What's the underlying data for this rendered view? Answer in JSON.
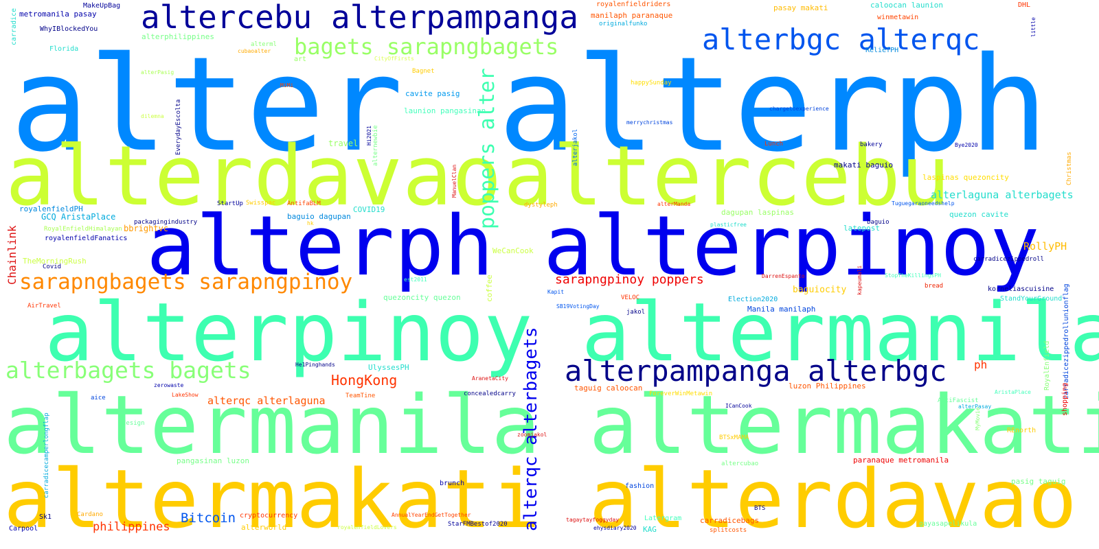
{
  "words": [
    {
      "text": "alter",
      "color": "#0088ff"
    },
    {
      "text": "alterph",
      "color": "#0088ff"
    },
    {
      "text": "alterdavao",
      "color": "#ccff33"
    },
    {
      "text": "altercebu",
      "color": "#ccff33"
    },
    {
      "text": "alterph alterpinoy",
      "color": "#0000ee"
    },
    {
      "text": "alterpinoy altermanila",
      "color": "#3dffb0"
    },
    {
      "text": "altermanila altermakati",
      "color": "#66ff99"
    },
    {
      "text": "altermakati alterdavao",
      "color": "#ffcc00"
    },
    {
      "text": "altercebu alterpampanga",
      "color": "#000099"
    },
    {
      "text": "alterbgc alterqc",
      "color": "#0055ee"
    },
    {
      "text": "bagets sarapngbagets",
      "color": "#99ff66"
    },
    {
      "text": "poppers alter",
      "color": "#3dffb0"
    },
    {
      "text": "sarapngbagets sarapngpinoy",
      "color": "#ff8800"
    },
    {
      "text": "alterbagets bagets",
      "color": "#88ff77"
    },
    {
      "text": "alterqc alterbagets",
      "color": "#0000ee"
    },
    {
      "text": "alterpampanga alterbgc",
      "color": "#000088"
    },
    {
      "text": "HongKong",
      "color": "#ff3300"
    },
    {
      "text": "Bitcoin",
      "color": "#0055ee"
    },
    {
      "text": "philippines",
      "color": "#ff3300"
    },
    {
      "text": "sarapngpinoy poppers",
      "color": "#ee0000"
    },
    {
      "text": "alterqc alterlaguna",
      "color": "#ff5500"
    },
    {
      "text": "alterlaguna alterbagets",
      "color": "#22ddcc"
    },
    {
      "text": "Chainlink",
      "color": "#dd1111"
    },
    {
      "text": "RollyPH",
      "color": "#ffbb00"
    },
    {
      "text": "ph",
      "color": "#ff3300"
    },
    {
      "text": "bbrightvc",
      "color": "#ff9900"
    },
    {
      "text": "baguiocity",
      "color": "#ffcc00"
    },
    {
      "text": "GCQ AristaPlace",
      "color": "#00aadd"
    },
    {
      "text": "metromanila pasay",
      "color": "#0000aa"
    },
    {
      "text": "MakeUpBag",
      "color": "#000099"
    },
    {
      "text": "WhyIBlockedYou",
      "color": "#000088"
    },
    {
      "text": "Florida",
      "color": "#22ddcc"
    },
    {
      "text": "alterphilippines",
      "color": "#77ff88"
    },
    {
      "text": "alterml",
      "color": "#88ff77"
    },
    {
      "text": "cubaoalter",
      "color": "#ffaa00"
    },
    {
      "text": "CityOfFirsts",
      "color": "#ddff55"
    },
    {
      "text": "art",
      "color": "#99ff66"
    },
    {
      "text": "Bagnet",
      "color": "#ffcc00"
    },
    {
      "text": "alterPasig",
      "color": "#aaff55"
    },
    {
      "text": "MiMi",
      "color": "#ff4400"
    },
    {
      "text": "dilemna",
      "color": "#ccff44"
    },
    {
      "text": "cavite pasig",
      "color": "#0099ee"
    },
    {
      "text": "launion pangasinan",
      "color": "#44ffbb"
    },
    {
      "text": "travel",
      "color": "#99ff66"
    },
    {
      "text": "Hi2021",
      "color": "#000099"
    },
    {
      "text": "alternewbie",
      "color": "#77ff88"
    },
    {
      "text": "EverydayEscolta",
      "color": "#000088"
    },
    {
      "text": "ManuelClan",
      "color": "#dd1111"
    },
    {
      "text": "royalenfieldriders",
      "color": "#ff5500"
    },
    {
      "text": "manilaph paranaque",
      "color": "#ff5500"
    },
    {
      "text": "originalfunko",
      "color": "#00aadd"
    },
    {
      "text": "pasay makati",
      "color": "#ffbb00"
    },
    {
      "text": "caloocan launion",
      "color": "#22ddcc"
    },
    {
      "text": "winmetawin",
      "color": "#ff4400"
    },
    {
      "text": "DHL",
      "color": "#ff3300"
    },
    {
      "text": "little",
      "color": "#0000aa"
    },
    {
      "text": "ReliefPH",
      "color": "#0088dd"
    },
    {
      "text": "happySunday",
      "color": "#ffdd00"
    },
    {
      "text": "chargetoexperience",
      "color": "#0044dd"
    },
    {
      "text": "merrychristmas",
      "color": "#0044dd"
    },
    {
      "text": "alterjakol",
      "color": "#0066ee"
    },
    {
      "text": "Lunch",
      "color": "#ff3300"
    },
    {
      "text": "bakery",
      "color": "#000099"
    },
    {
      "text": "Bye2020",
      "color": "#0000aa"
    },
    {
      "text": "Christmas",
      "color": "#ffaa00"
    },
    {
      "text": "laspinas quezoncity",
      "color": "#ffdd00"
    },
    {
      "text": "makati baguio",
      "color": "#000088"
    },
    {
      "text": "dystyleph",
      "color": "#ffaa00"
    },
    {
      "text": "alterManda",
      "color": "#ff3300"
    },
    {
      "text": "Tuguegaraoneedshelp",
      "color": "#0055ee"
    },
    {
      "text": "dagupan laspinas",
      "color": "#99ff66"
    },
    {
      "text": "latepost",
      "color": "#22ddcc"
    },
    {
      "text": "quezon cavite",
      "color": "#22ddcc"
    },
    {
      "text": "plasticfree",
      "color": "#22ddcc"
    },
    {
      "text": "baguio",
      "color": "#000088"
    },
    {
      "text": "royalenfieldPH",
      "color": "#0088dd"
    },
    {
      "text": "StartUp",
      "color": "#000099"
    },
    {
      "text": "Swisspac",
      "color": "#ffcc00"
    },
    {
      "text": "AntifaBLM",
      "color": "#ff4400"
    },
    {
      "text": "COVID19",
      "color": "#22ddcc"
    },
    {
      "text": "packagingindustry",
      "color": "#000088"
    },
    {
      "text": "baguio dagupan",
      "color": "#0088dd"
    },
    {
      "text": "hk",
      "color": "#ffcc00"
    },
    {
      "text": "RoyalEnfieldHimalayan",
      "color": "#aaff55"
    },
    {
      "text": "royalenfieldFanatics",
      "color": "#0000aa"
    },
    {
      "text": "TheMorningRush",
      "color": "#ccff44"
    },
    {
      "text": "Covid",
      "color": "#000088"
    },
    {
      "text": "WeCanCook",
      "color": "#ccff44"
    },
    {
      "text": "coffee",
      "color": "#ccff44"
    },
    {
      "text": "est2011",
      "color": "#44ffbb"
    },
    {
      "text": "quezoncity quezon",
      "color": "#66ff99"
    },
    {
      "text": "AirTravel",
      "color": "#ff3300"
    },
    {
      "text": "SB19VotingDay",
      "color": "#0055ee"
    },
    {
      "text": "Kapit",
      "color": "#0055ee"
    },
    {
      "text": "VELOC",
      "color": "#ff3300"
    },
    {
      "text": "DarrenEspanto",
      "color": "#dd1111"
    },
    {
      "text": "kapeumali",
      "color": "#dd1111"
    },
    {
      "text": "StopTheKillingsPH",
      "color": "#44ffbb"
    },
    {
      "text": "bread",
      "color": "#ee2200"
    },
    {
      "text": "carradicezippedroll",
      "color": "#000088"
    },
    {
      "text": "korneliascuisine",
      "color": "#000088"
    },
    {
      "text": "StandYourGround",
      "color": "#22ddcc"
    },
    {
      "text": "Election2020",
      "color": "#00aadd"
    },
    {
      "text": "Manila manilaph",
      "color": "#0044dd"
    },
    {
      "text": "jakol",
      "color": "#000088"
    },
    {
      "text": "carradicezippedrollunionflag",
      "color": "#0044dd"
    },
    {
      "text": "shopping",
      "color": "#ee0000"
    },
    {
      "text": "RoyalEnfield",
      "color": "#88ff77"
    },
    {
      "text": "carradice",
      "color": "#22ddcc"
    },
    {
      "text": "UlyssesPH",
      "color": "#22ddcc"
    },
    {
      "text": "He1Pinghands",
      "color": "#000088"
    },
    {
      "text": "zerowaste",
      "color": "#0000aa"
    },
    {
      "text": "AranetaCity",
      "color": "#dd1111"
    },
    {
      "text": "taguig caloocan",
      "color": "#ff5500"
    },
    {
      "text": "luzon Philippines",
      "color": "#ff5500"
    },
    {
      "text": "LakeShow",
      "color": "#ff3300"
    },
    {
      "text": "TeamTine",
      "color": "#ff5500"
    },
    {
      "text": "aice",
      "color": "#0044dd"
    },
    {
      "text": "concealedcarry",
      "color": "#000088"
    },
    {
      "text": "ForeverWinMetawin",
      "color": "#ffdd00"
    },
    {
      "text": "ICanCook",
      "color": "#000099"
    },
    {
      "text": "AntiFascist",
      "color": "#66ff99"
    },
    {
      "text": "AristaPlace",
      "color": "#44ffbb"
    },
    {
      "text": "alterPasay",
      "color": "#00aadd"
    },
    {
      "text": "MyMovie",
      "color": "#88ff77"
    },
    {
      "text": "carradicecamperlongflap",
      "color": "#00aadd"
    },
    {
      "text": "design",
      "color": "#66ff99"
    },
    {
      "text": "zoomjakol",
      "color": "#dd1111"
    },
    {
      "text": "BTSxMAMA",
      "color": "#ffcc00"
    },
    {
      "text": "REnorth",
      "color": "#ffcc00"
    },
    {
      "text": "pangasinan luzon",
      "color": "#77ff88"
    },
    {
      "text": "paranaque metromanila",
      "color": "#ee0000"
    },
    {
      "text": "altercubao",
      "color": "#77ff88"
    },
    {
      "text": "pasig taguig",
      "color": "#77ff88"
    },
    {
      "text": "brunch",
      "color": "#0000aa"
    },
    {
      "text": "fashion",
      "color": "#0044dd"
    },
    {
      "text": "BTS",
      "color": "#000088"
    },
    {
      "text": "Sk1",
      "color": "#000088"
    },
    {
      "text": "Cardano",
      "color": "#ffaa00"
    },
    {
      "text": "cryptocurrency",
      "color": "#ff3300"
    },
    {
      "text": "AnnualYearEndGetTogether",
      "color": "#ff4400"
    },
    {
      "text": "tagaytayfoggyday",
      "color": "#dd1111"
    },
    {
      "text": "Latergram",
      "color": "#44ffbb"
    },
    {
      "text": "carradicebags",
      "color": "#ff5500"
    },
    {
      "text": "gayasapelikula",
      "color": "#66ff99"
    },
    {
      "text": "Carpool",
      "color": "#0000aa"
    },
    {
      "text": "alterworld",
      "color": "#ffcc00"
    },
    {
      "text": "royalenfieldLovers",
      "color": "#ccff44"
    },
    {
      "text": "StarFMBestof2020",
      "color": "#000099"
    },
    {
      "text": "ehysdiary2020",
      "color": "#000099"
    },
    {
      "text": "KAG",
      "color": "#22ddcc"
    },
    {
      "text": "splitcosts",
      "color": "#ff5500"
    }
  ]
}
